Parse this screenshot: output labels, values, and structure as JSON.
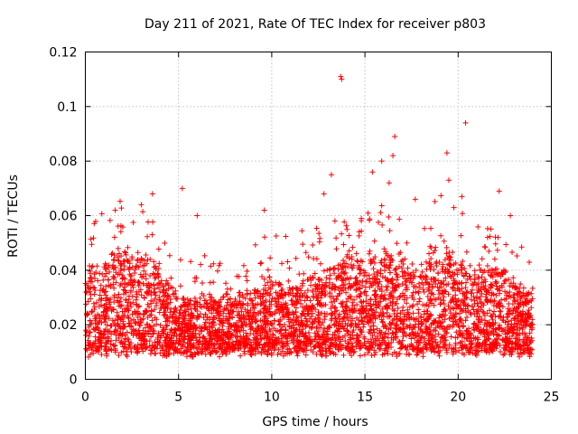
{
  "chart_data": {
    "type": "scatter",
    "title": "Day 211 of 2021, Rate Of TEC Index for receiver p803",
    "xlabel": "GPS time / hours",
    "ylabel": "ROTI / TECUs",
    "xlim": [
      0,
      25
    ],
    "ylim": [
      0,
      0.12
    ],
    "xticks": [
      0,
      5,
      10,
      15,
      20,
      25
    ],
    "xtick_labels": [
      "0",
      "5",
      "10",
      "15",
      "20",
      "25"
    ],
    "yticks": [
      0,
      0.02,
      0.04,
      0.06,
      0.08,
      0.1,
      0.12
    ],
    "ytick_labels": [
      "0",
      "0.02",
      "0.04",
      "0.06",
      "0.08",
      "0.1",
      "0.12"
    ],
    "grid": true,
    "marker": "+",
    "series": [
      {
        "name": "ROTI",
        "color": "#ff0000",
        "envelope": {
          "x": [
            0,
            1,
            2,
            3,
            4,
            5,
            6,
            7,
            8,
            9,
            10,
            11,
            12,
            13,
            14,
            15,
            16,
            17,
            18,
            19,
            20,
            21,
            22,
            23,
            24
          ],
          "base_max": [
            0.04,
            0.046,
            0.05,
            0.048,
            0.042,
            0.03,
            0.032,
            0.03,
            0.03,
            0.034,
            0.038,
            0.036,
            0.04,
            0.04,
            0.046,
            0.048,
            0.05,
            0.044,
            0.042,
            0.052,
            0.046,
            0.042,
            0.044,
            0.036,
            0.032
          ],
          "floor": 0.008
        },
        "outliers": [
          {
            "x": 13.7,
            "y": 0.111
          },
          {
            "x": 13.75,
            "y": 0.11
          },
          {
            "x": 20.4,
            "y": 0.094
          },
          {
            "x": 16.6,
            "y": 0.089
          },
          {
            "x": 19.4,
            "y": 0.083
          },
          {
            "x": 16.5,
            "y": 0.082
          },
          {
            "x": 15.9,
            "y": 0.08
          },
          {
            "x": 15.4,
            "y": 0.076
          },
          {
            "x": 13.2,
            "y": 0.075
          },
          {
            "x": 19.5,
            "y": 0.073
          },
          {
            "x": 16.3,
            "y": 0.072
          },
          {
            "x": 5.2,
            "y": 0.07
          },
          {
            "x": 3.6,
            "y": 0.068
          },
          {
            "x": 22.2,
            "y": 0.069
          },
          {
            "x": 12.8,
            "y": 0.068
          },
          {
            "x": 17.7,
            "y": 0.066
          },
          {
            "x": 20.2,
            "y": 0.067
          },
          {
            "x": 1.6,
            "y": 0.062
          },
          {
            "x": 3.0,
            "y": 0.064
          },
          {
            "x": 9.6,
            "y": 0.062
          },
          {
            "x": 6.0,
            "y": 0.06
          },
          {
            "x": 22.8,
            "y": 0.06
          }
        ]
      }
    ]
  }
}
